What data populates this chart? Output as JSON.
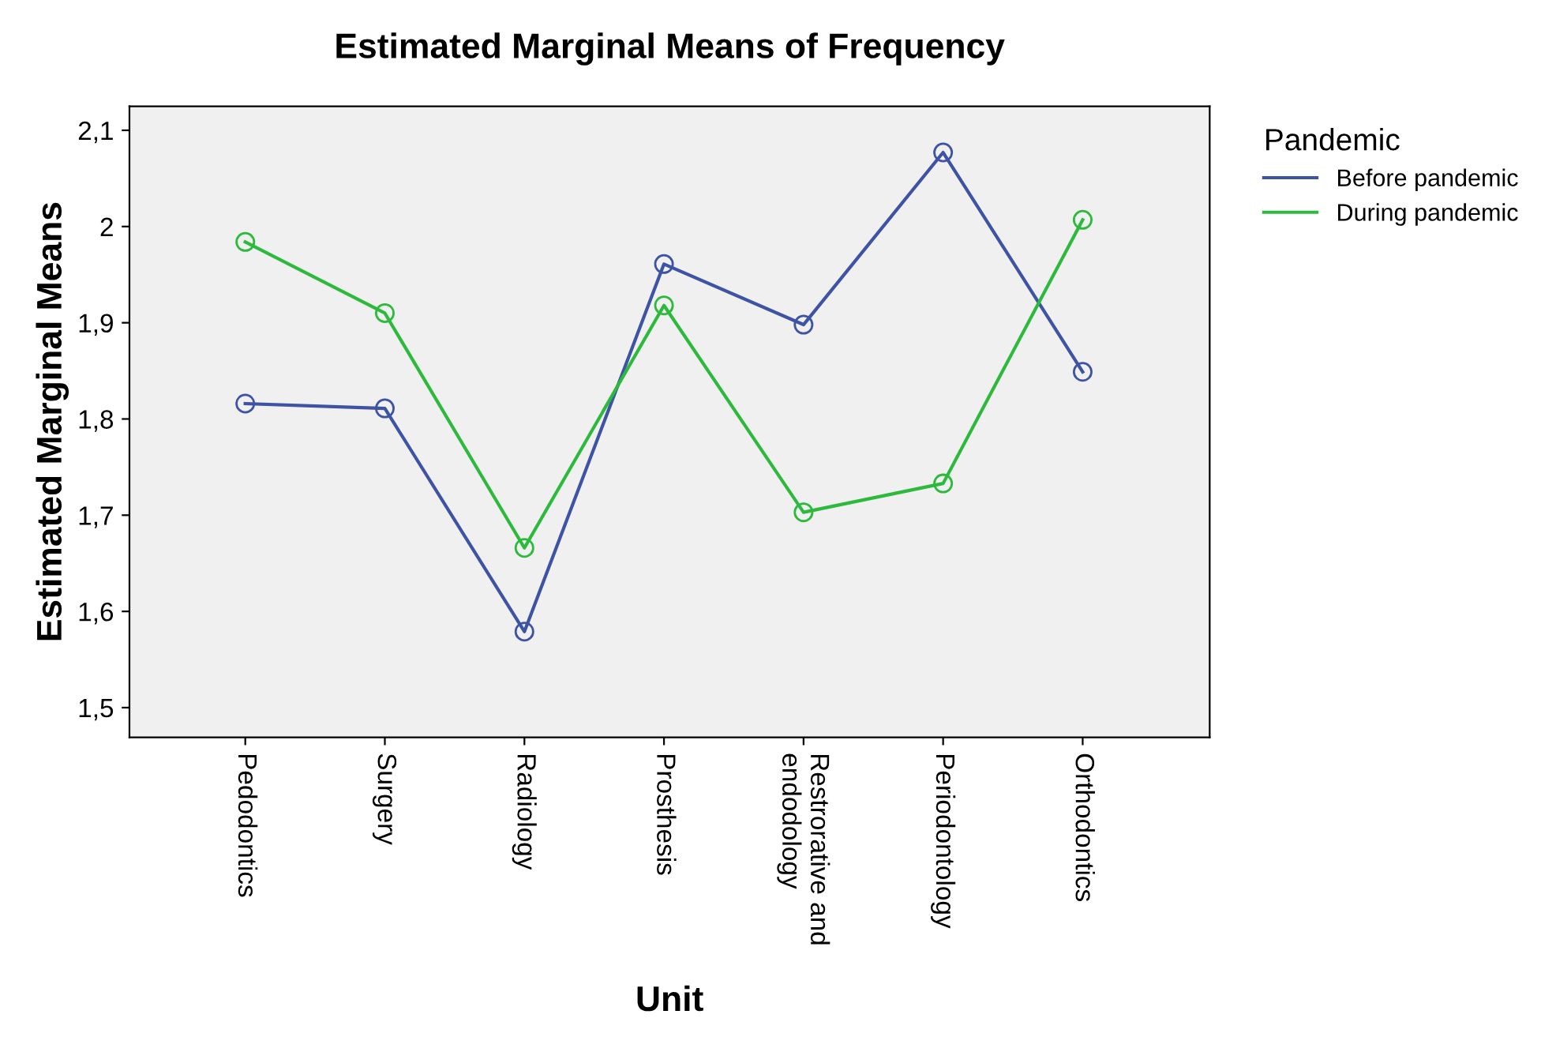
{
  "chart_data": {
    "type": "line",
    "title": "Estimated Marginal Means of Frequency",
    "xlabel": "Unit",
    "ylabel": "Estimated Marginal Means",
    "legend_title": "Pandemic",
    "categories": [
      "Pedodontics",
      "Surgery",
      "Radiology",
      "Prosthesis",
      "Restrorative and\nendodology",
      "Periodontology",
      "Orthodontics"
    ],
    "series": [
      {
        "name": "Before pandemic",
        "color": "#3e53a4",
        "values": [
          1.816,
          1.811,
          1.579,
          1.961,
          1.898,
          2.077,
          1.849
        ]
      },
      {
        "name": "During pandemic",
        "color": "#2dba3c",
        "values": [
          1.984,
          1.91,
          1.666,
          1.918,
          1.703,
          1.733,
          2.007
        ]
      }
    ],
    "ylim": [
      1.469,
      2.125
    ],
    "yticks": [
      {
        "value": 1.5,
        "label": "1,5"
      },
      {
        "value": 1.6,
        "label": "1,6"
      },
      {
        "value": 1.7,
        "label": "1,7"
      },
      {
        "value": 1.8,
        "label": "1,8"
      },
      {
        "value": 1.9,
        "label": "1,9"
      },
      2,
      {
        "value": 2.1,
        "label": "2,1"
      }
    ],
    "marker": "circle",
    "line_style": "solid",
    "legend": "right",
    "grid": false
  }
}
